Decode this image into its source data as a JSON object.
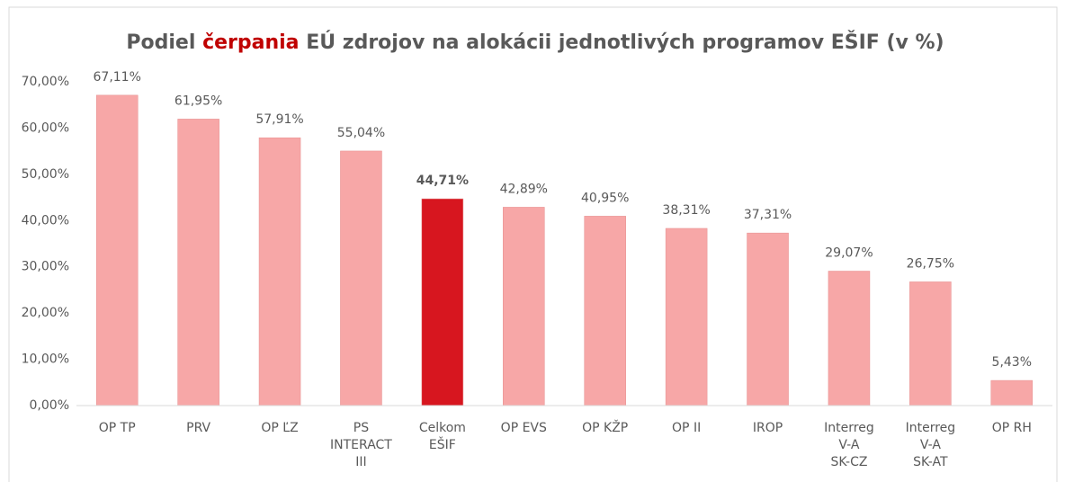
{
  "chart_data": {
    "type": "bar",
    "title_parts": [
      "Podiel",
      "čerpania",
      "EÚ zdrojov na alokácii jednotlivých programov EŠIF (v %)"
    ],
    "title_highlight": 1,
    "title_highlight_color": "#c00000",
    "categories": [
      [
        "OP TP"
      ],
      [
        "PRV"
      ],
      [
        "OP ĽZ"
      ],
      [
        "PS",
        "INTERACT",
        "III"
      ],
      [
        "Celkom",
        "EŠIF"
      ],
      [
        "OP EVS"
      ],
      [
        "OP KŽP"
      ],
      [
        "OP II"
      ],
      [
        "IROP"
      ],
      [
        "Interreg",
        "V-A",
        "SK-CZ"
      ],
      [
        "Interreg",
        "V-A",
        "SK-AT"
      ],
      [
        "OP RH"
      ]
    ],
    "values": [
      67.11,
      61.95,
      57.91,
      55.04,
      44.71,
      42.89,
      40.95,
      38.31,
      37.31,
      29.07,
      26.75,
      5.43
    ],
    "value_labels": [
      "67,11%",
      "61,95%",
      "57,91%",
      "55,04%",
      "44,71%",
      "42,89%",
      "40,95%",
      "38,31%",
      "37,31%",
      "29,07%",
      "26,75%",
      "5,43%"
    ],
    "colors": [
      "#f7a7a7",
      "#f7a7a7",
      "#f7a7a7",
      "#f7a7a7",
      "#d7161f",
      "#f7a7a7",
      "#f7a7a7",
      "#f7a7a7",
      "#f7a7a7",
      "#f7a7a7",
      "#f7a7a7",
      "#f7a7a7"
    ],
    "highlight_index": 4,
    "ylim": [
      0,
      70
    ],
    "yticks": [
      {
        "value": 0,
        "label": "0,00%"
      },
      {
        "value": 10,
        "label": "10,00%"
      },
      {
        "value": 20,
        "label": "20,00%"
      },
      {
        "value": 30,
        "label": "30,00%"
      },
      {
        "value": 40,
        "label": "40,00%"
      },
      {
        "value": 50,
        "label": "50,00%"
      },
      {
        "value": 60,
        "label": "60,00%"
      },
      {
        "value": 70,
        "label": "70,00%"
      }
    ],
    "grid": false
  }
}
